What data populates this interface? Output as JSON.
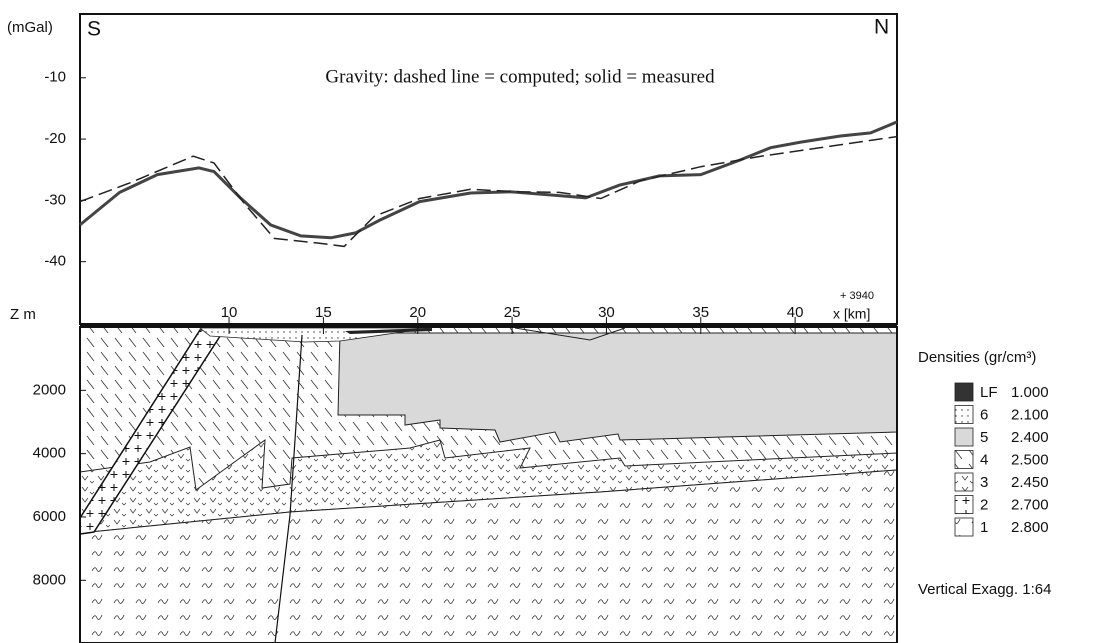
{
  "chart_data": {
    "type": "line",
    "y_label": "(mGal)",
    "left_label": "S",
    "right_label": "N",
    "annotation": "Gravity: dashed line = computed; solid = measured",
    "x_offset_label": "+ 3940",
    "x_label": "x [km]",
    "xlim": [
      2.1,
      45.4
    ],
    "ylim": [
      -50,
      0.4
    ],
    "xticks": [
      10,
      15,
      20,
      25,
      30,
      35,
      40
    ],
    "yticks": [
      -40,
      -30,
      -20,
      -10
    ],
    "series": [
      {
        "style": "solid",
        "color": "#444444",
        "x": [
          2.1,
          4.2,
          6.2,
          8.4,
          9.2,
          10.6,
          12.2,
          13.8,
          15.4,
          16.7,
          18.0,
          20.1,
          22.8,
          24.9,
          27.0,
          28.9,
          30.7,
          32.8,
          35.0,
          37.1,
          38.7,
          40.3,
          42.4,
          44.0,
          45.4
        ],
        "values": [
          -34.0,
          -28.7,
          -25.8,
          -24.7,
          -25.3,
          -29.6,
          -34.0,
          -35.8,
          -36.1,
          -35.3,
          -33.2,
          -30.2,
          -28.8,
          -28.6,
          -29.1,
          -29.6,
          -27.5,
          -26.0,
          -25.8,
          -23.4,
          -21.4,
          -20.5,
          -19.5,
          -19.0,
          -17.2
        ]
      },
      {
        "style": "dashed",
        "color": "#222222",
        "x": [
          2.1,
          4.7,
          8.1,
          9.2,
          10.8,
          12.4,
          14.8,
          16.1,
          17.7,
          20.1,
          22.8,
          25.4,
          27.5,
          29.7,
          31.8,
          35.0,
          38.2,
          45.4
        ],
        "values": [
          -30.2,
          -27.2,
          -22.8,
          -23.9,
          -30.5,
          -36.2,
          -37.0,
          -37.5,
          -32.6,
          -29.7,
          -28.2,
          -28.6,
          -28.7,
          -29.7,
          -26.8,
          -24.5,
          -22.8,
          -19.6
        ]
      }
    ]
  },
  "cross_section": {
    "depth_label": "Z m",
    "zlim": [
      0,
      9980
    ],
    "zticks": [
      2000,
      4000,
      6000,
      8000
    ],
    "legend_title": "Densities (gr/cm³)",
    "units": [
      {
        "label": "LF",
        "density": "1.000"
      },
      {
        "label": "6",
        "density": "2.100"
      },
      {
        "label": "5",
        "density": "2.400"
      },
      {
        "label": "4",
        "density": "2.500"
      },
      {
        "label": "3",
        "density": "2.450"
      },
      {
        "label": "2",
        "density": "2.700"
      },
      {
        "label": "1",
        "density": "2.800"
      }
    ],
    "note": "Vertical Exagg. 1:64"
  }
}
